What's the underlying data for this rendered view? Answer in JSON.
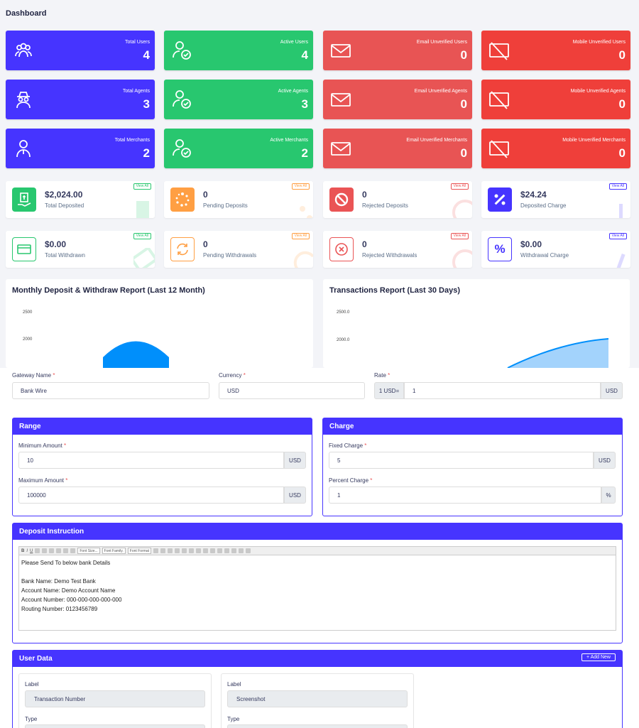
{
  "page_title": "Dashboard",
  "stats": [
    {
      "label": "Total Users",
      "value": "4"
    },
    {
      "label": "Active Users",
      "value": "4"
    },
    {
      "label": "Email Unverified Users",
      "value": "0"
    },
    {
      "label": "Mobile Unverified Users",
      "value": "0"
    },
    {
      "label": "Total Agents",
      "value": "3"
    },
    {
      "label": "Active Agents",
      "value": "3"
    },
    {
      "label": "Email Unverified Agents",
      "value": "0"
    },
    {
      "label": "Mobile Unverified Agents",
      "value": "0"
    },
    {
      "label": "Total Merchants",
      "value": "2"
    },
    {
      "label": "Active Merchants",
      "value": "2"
    },
    {
      "label": "Email Unverified Merchants",
      "value": "0"
    },
    {
      "label": "Mobile Unverified Merchants",
      "value": "0"
    }
  ],
  "widgets": [
    {
      "value": "$2,024.00",
      "label": "Total Deposited",
      "link": "View All"
    },
    {
      "value": "0",
      "label": "Pending Deposits",
      "link": "View All"
    },
    {
      "value": "0",
      "label": "Rejected Deposits",
      "link": "View All"
    },
    {
      "value": "$24.24",
      "label": "Deposited Charge",
      "link": "View All"
    },
    {
      "value": "$0.00",
      "label": "Total Withdrawn",
      "link": "View All"
    },
    {
      "value": "0",
      "label": "Pending Withdrawals",
      "link": "View All"
    },
    {
      "value": "0",
      "label": "Rejected Withdrawals",
      "link": "View All"
    },
    {
      "value": "$0.00",
      "label": "Withdrawal Charge",
      "link": "View All"
    }
  ],
  "charts": {
    "monthly": {
      "title": "Monthly Deposit & Withdraw Report (Last 12 Month)",
      "ticks": [
        "2500",
        "2000"
      ]
    },
    "transactions": {
      "title": "Transactions Report (Last 30 Days)",
      "ticks": [
        "2500.0",
        "2000.0"
      ]
    }
  },
  "form": {
    "gateway_name_label": "Gateway Name",
    "gateway_name_value": "Bank Wire",
    "currency_label": "Currency",
    "currency_value": "USD",
    "rate_label": "Rate",
    "rate_prefix": "1 USD=",
    "rate_value": "1",
    "rate_suffix": "USD",
    "required_mark": "*"
  },
  "range": {
    "title": "Range",
    "min_label": "Minimum Amount",
    "min_value": "10",
    "max_label": "Maximum Amount",
    "max_value": "100000",
    "unit": "USD"
  },
  "charge": {
    "title": "Charge",
    "fixed_label": "Fixed Charge",
    "fixed_value": "5",
    "fixed_unit": "USD",
    "percent_label": "Percent Charge",
    "percent_value": "1",
    "percent_unit": "%"
  },
  "deposit_instruction": {
    "title": "Deposit Instruction",
    "toolbar": {
      "font_size": "Font Size...",
      "font_family": "Font Family.",
      "font_format": "Font Format"
    },
    "lines": [
      "Please Send To below bank Details",
      "",
      "Bank Name: Demo Test Bank",
      "Account Name: Demo Account Name",
      "Account Number: 000-000-000-000-000",
      "Routing Number: 0123456789"
    ]
  },
  "user_data": {
    "title": "User Data",
    "add_new": "+ Add New",
    "label_text": "Label",
    "type_text": "Type",
    "fields": [
      "Transaction Number",
      "Screenshot"
    ]
  },
  "colors": {
    "primary": "#4634ff",
    "success": "#28c76f",
    "danger": "#ea5455",
    "warning": "#ff9f43"
  }
}
